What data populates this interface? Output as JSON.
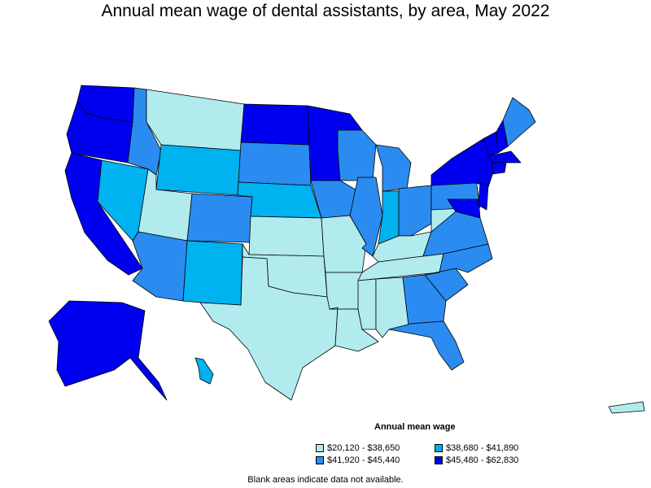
{
  "title": "Annual mean wage of dental assistants, by area, May 2022",
  "legend": {
    "title": "Annual mean wage",
    "items": [
      {
        "label": "$20,120 - $38,650",
        "color": "#b2ebee"
      },
      {
        "label": "$38,680 - $41,890",
        "color": "#00b2f0"
      },
      {
        "label": "$41,920 - $45,440",
        "color": "#2a8cf0"
      },
      {
        "label": "$45,480 - $62,830",
        "color": "#0000f0"
      }
    ]
  },
  "note": "Blank areas indicate data not available.",
  "map_data": {
    "type": "choropleth",
    "regions": [
      {
        "name": "Washington",
        "bin": 3
      },
      {
        "name": "Oregon",
        "bin": 3
      },
      {
        "name": "California",
        "bin": 3
      },
      {
        "name": "Nevada",
        "bin": 1
      },
      {
        "name": "Idaho",
        "bin": 2
      },
      {
        "name": "Montana",
        "bin": 0
      },
      {
        "name": "Wyoming",
        "bin": 1
      },
      {
        "name": "Utah",
        "bin": 0
      },
      {
        "name": "Colorado",
        "bin": 2
      },
      {
        "name": "Arizona",
        "bin": 2
      },
      {
        "name": "New Mexico",
        "bin": 1
      },
      {
        "name": "North Dakota",
        "bin": 3
      },
      {
        "name": "South Dakota",
        "bin": 2
      },
      {
        "name": "Nebraska",
        "bin": 1
      },
      {
        "name": "Kansas",
        "bin": 0
      },
      {
        "name": "Oklahoma",
        "bin": 0
      },
      {
        "name": "Texas",
        "bin": 0
      },
      {
        "name": "Minnesota",
        "bin": 3
      },
      {
        "name": "Iowa",
        "bin": 2
      },
      {
        "name": "Missouri",
        "bin": 0
      },
      {
        "name": "Arkansas",
        "bin": 0
      },
      {
        "name": "Louisiana",
        "bin": 0
      },
      {
        "name": "Wisconsin",
        "bin": 2
      },
      {
        "name": "Illinois",
        "bin": 2
      },
      {
        "name": "Michigan",
        "bin": 2
      },
      {
        "name": "Indiana",
        "bin": 1
      },
      {
        "name": "Ohio",
        "bin": 2
      },
      {
        "name": "Kentucky",
        "bin": 0
      },
      {
        "name": "Tennessee",
        "bin": 0
      },
      {
        "name": "Mississippi",
        "bin": 0
      },
      {
        "name": "Alabama",
        "bin": 0
      },
      {
        "name": "Georgia",
        "bin": 2
      },
      {
        "name": "Florida",
        "bin": 2
      },
      {
        "name": "South Carolina",
        "bin": 2
      },
      {
        "name": "North Carolina",
        "bin": 2
      },
      {
        "name": "Virginia",
        "bin": 2
      },
      {
        "name": "West Virginia",
        "bin": 0
      },
      {
        "name": "Pennsylvania",
        "bin": 2
      },
      {
        "name": "New York",
        "bin": 3
      },
      {
        "name": "Vermont",
        "bin": 3
      },
      {
        "name": "New Hampshire",
        "bin": 3
      },
      {
        "name": "Maine",
        "bin": 2
      },
      {
        "name": "Massachusetts",
        "bin": 3
      },
      {
        "name": "Connecticut",
        "bin": 3
      },
      {
        "name": "New Jersey",
        "bin": 3
      },
      {
        "name": "Maryland",
        "bin": 3
      },
      {
        "name": "Alaska",
        "bin": 3
      },
      {
        "name": "Hawaii",
        "bin": 1
      },
      {
        "name": "Puerto Rico",
        "bin": 0
      }
    ]
  }
}
